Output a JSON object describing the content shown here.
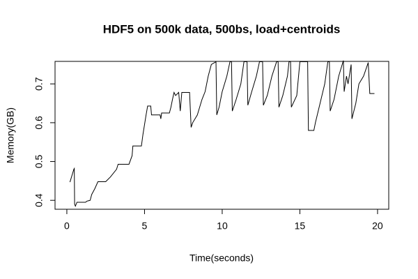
{
  "chart_data": {
    "type": "line",
    "title": "HDF5 on 500k data, 500bs, load+centroids",
    "x_label": "Time(seconds)",
    "y_label": "Memory(GB)",
    "x": [
      0.2,
      0.45,
      0.48,
      0.5,
      0.55,
      0.65,
      1.2,
      1.3,
      1.5,
      1.6,
      1.8,
      2.0,
      2.5,
      2.8,
      3.2,
      3.3,
      4.0,
      4.2,
      4.25,
      4.8,
      4.9,
      5.1,
      5.2,
      5.4,
      5.45,
      6.0,
      6.05,
      6.1,
      6.6,
      6.7,
      6.8,
      6.9,
      7.0,
      7.2,
      7.3,
      7.4,
      7.9,
      8.0,
      8.1,
      8.4,
      8.7,
      8.9,
      9.1,
      9.3,
      9.6,
      9.65,
      9.8,
      10.0,
      10.3,
      10.5,
      10.6,
      10.65,
      10.9,
      11.2,
      11.4,
      11.6,
      11.65,
      11.9,
      12.2,
      12.4,
      12.6,
      12.65,
      12.9,
      13.2,
      13.5,
      13.6,
      13.65,
      13.9,
      14.2,
      14.3,
      14.4,
      14.45,
      14.8,
      15.0,
      15.5,
      15.55,
      15.9,
      16.0,
      16.3,
      16.6,
      16.8,
      16.9,
      16.95,
      17.2,
      17.5,
      17.8,
      17.85,
      18.0,
      18.1,
      18.3,
      18.35,
      18.6,
      18.8,
      19.1,
      19.4,
      19.5,
      19.8
    ],
    "series": [
      {
        "color": "#000000",
        "values": [
          0.447,
          0.48,
          0.482,
          0.39,
          0.385,
          0.395,
          0.395,
          0.398,
          0.4,
          0.415,
          0.43,
          0.448,
          0.448,
          0.46,
          0.48,
          0.493,
          0.493,
          0.515,
          0.54,
          0.54,
          0.57,
          0.62,
          0.643,
          0.643,
          0.62,
          0.62,
          0.61,
          0.625,
          0.625,
          0.64,
          0.66,
          0.678,
          0.67,
          0.678,
          0.63,
          0.678,
          0.678,
          0.588,
          0.6,
          0.62,
          0.66,
          0.68,
          0.72,
          0.75,
          0.757,
          0.62,
          0.64,
          0.68,
          0.72,
          0.757,
          0.757,
          0.63,
          0.66,
          0.7,
          0.757,
          0.757,
          0.645,
          0.68,
          0.72,
          0.757,
          0.757,
          0.645,
          0.67,
          0.72,
          0.757,
          0.757,
          0.64,
          0.67,
          0.72,
          0.757,
          0.757,
          0.64,
          0.67,
          0.757,
          0.757,
          0.58,
          0.58,
          0.6,
          0.65,
          0.7,
          0.757,
          0.757,
          0.63,
          0.66,
          0.72,
          0.76,
          0.68,
          0.72,
          0.7,
          0.75,
          0.61,
          0.65,
          0.7,
          0.72,
          0.755,
          0.675,
          0.675
        ]
      }
    ],
    "xlim": [
      -0.76,
      20.72
    ],
    "ylim": [
      0.377,
      0.758
    ],
    "xticks": [
      0,
      5,
      10,
      15,
      20
    ],
    "yticks": [
      0.4,
      0.5,
      0.6,
      0.7
    ]
  }
}
